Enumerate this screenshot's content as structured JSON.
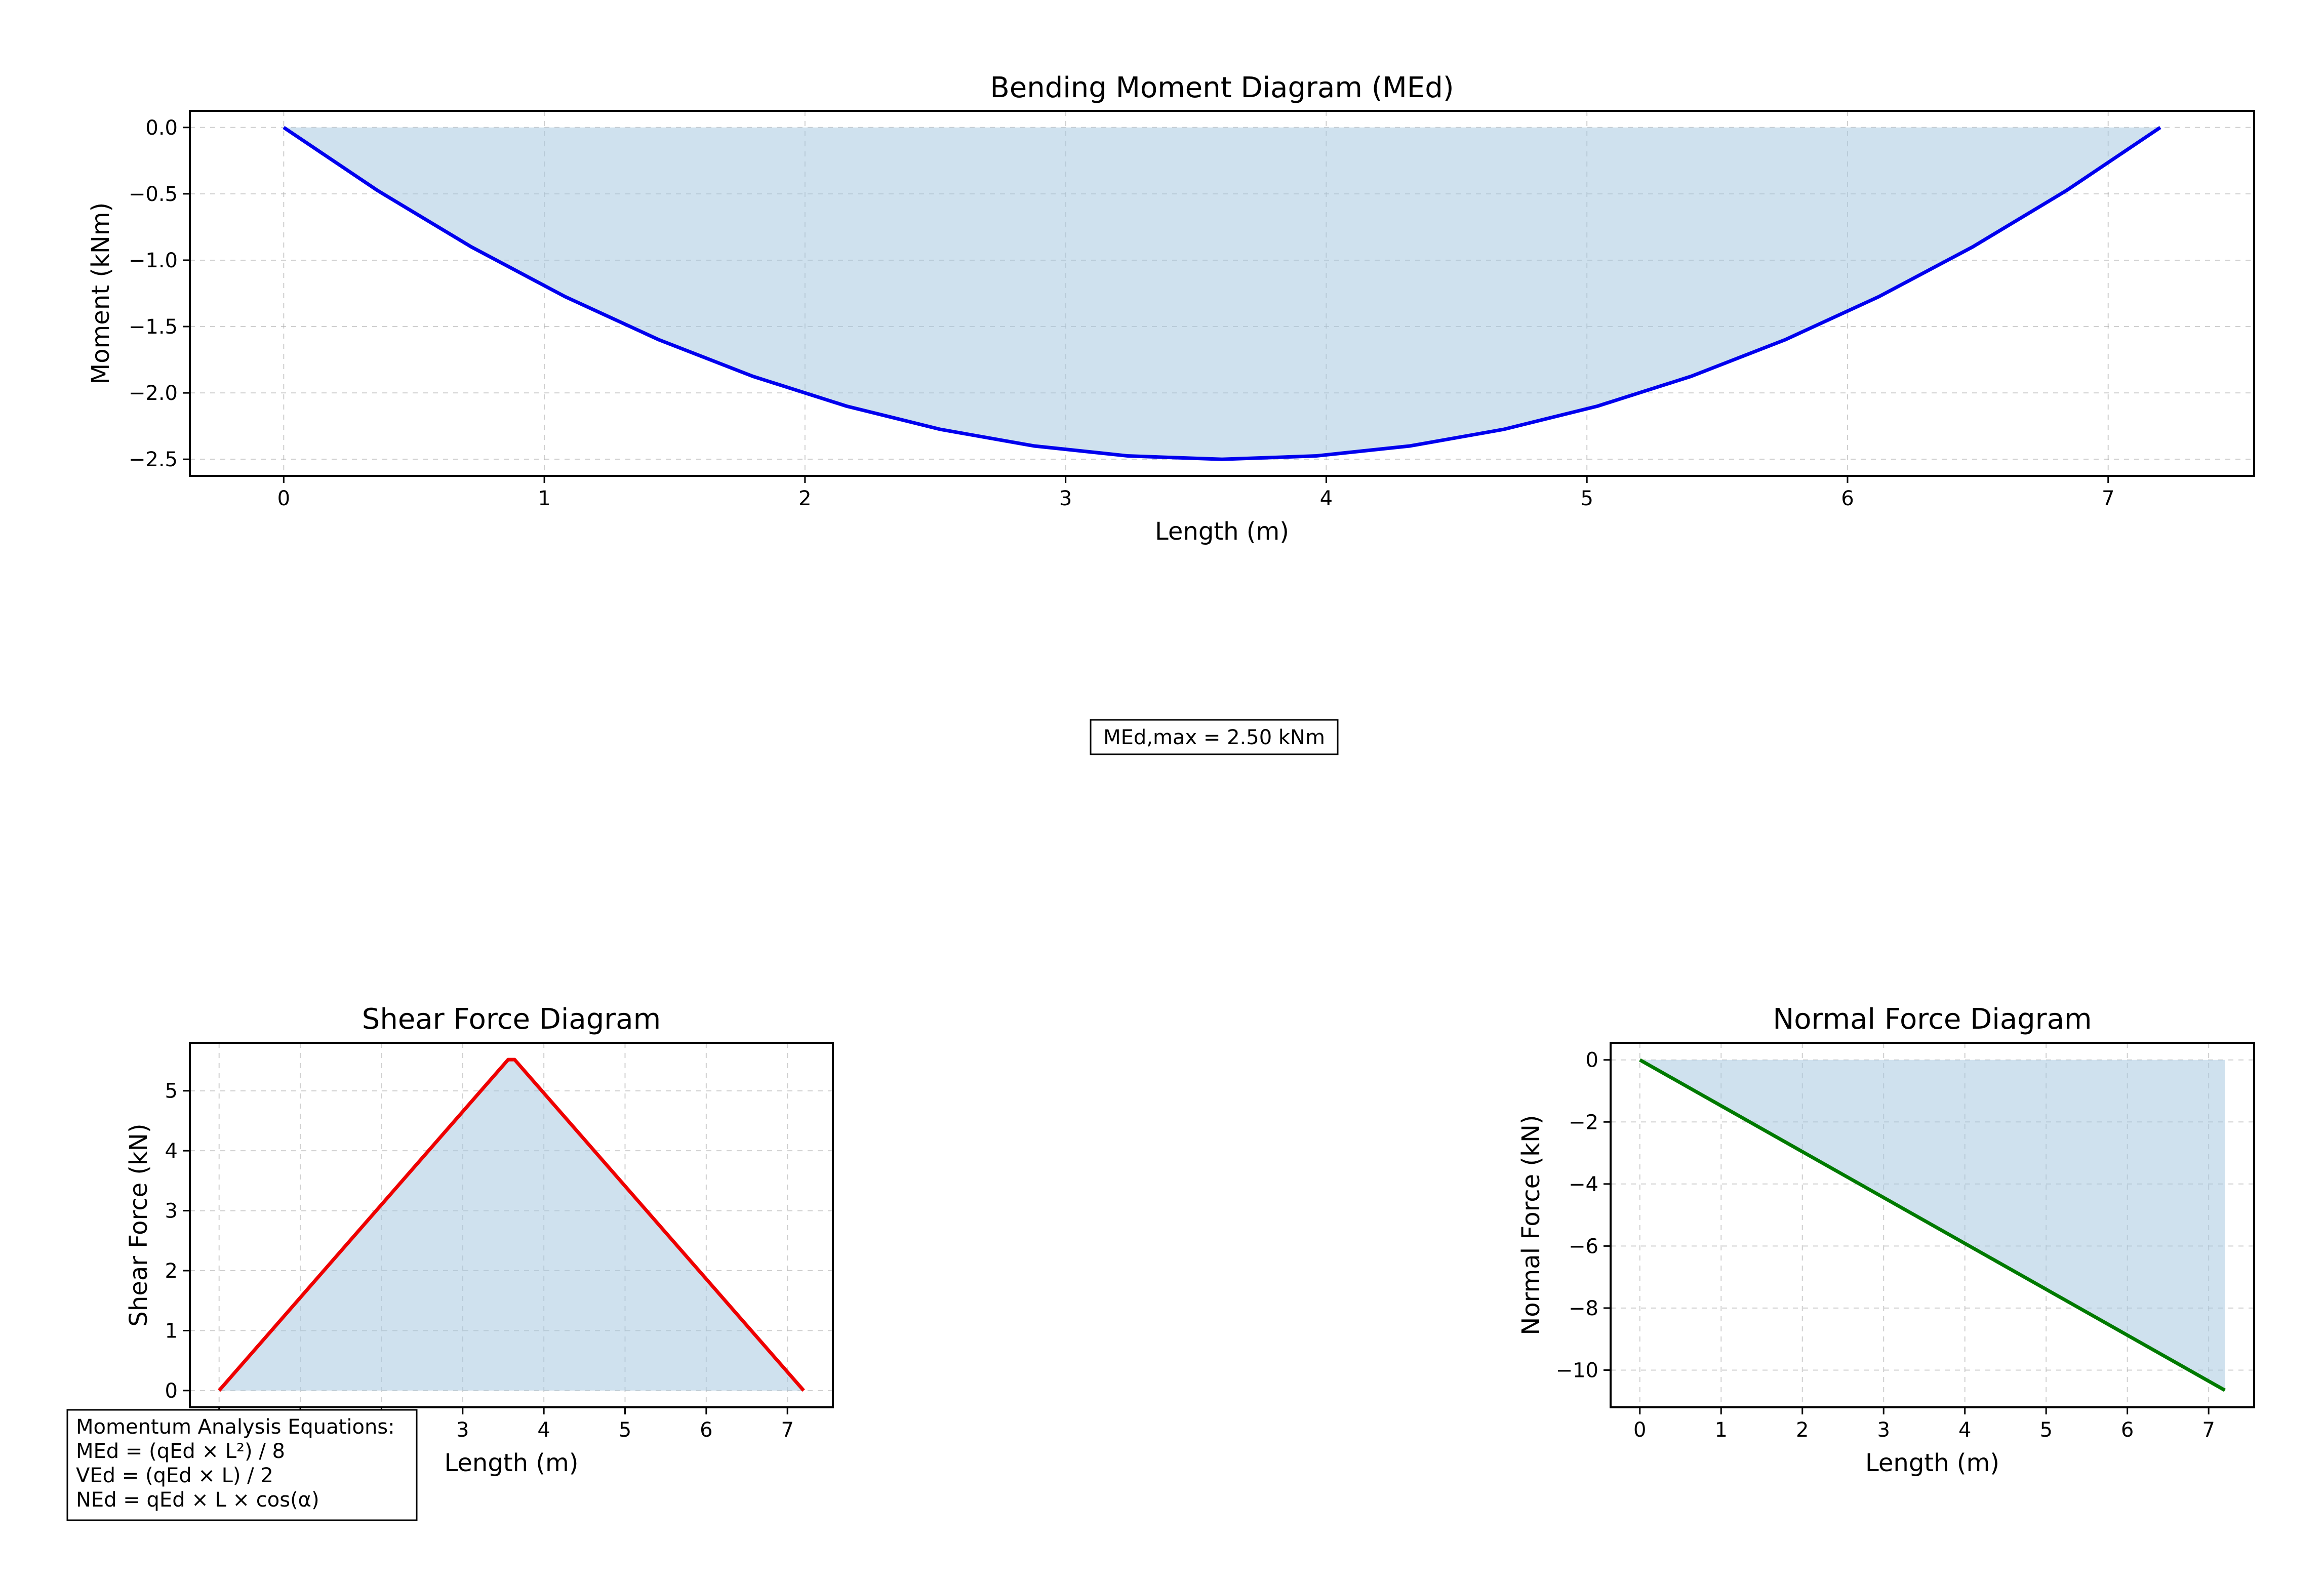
{
  "chart_data": [
    {
      "type": "area",
      "title": "Bending Moment Diagram (MEd)",
      "xlabel": "Length (m)",
      "ylabel": "Moment (kNm)",
      "xlim": [
        -0.36,
        7.56
      ],
      "ylim": [
        -2.625,
        0.125
      ],
      "xticks": [
        0,
        1,
        2,
        3,
        4,
        5,
        6,
        7
      ],
      "yticks": [
        0.0,
        -0.5,
        -1.0,
        -1.5,
        -2.0,
        -2.5
      ],
      "xtick_labels": [
        "0",
        "1",
        "2",
        "3",
        "4",
        "5",
        "6",
        "7"
      ],
      "ytick_labels": [
        "0.0",
        "−0.5",
        "−1.0",
        "−1.5",
        "−2.0",
        "−2.5"
      ],
      "grid": true,
      "series": [
        {
          "name": "MEd",
          "color": "#0000ee",
          "fill": "#a8c8e0",
          "x": [
            0,
            0.36,
            0.72,
            1.08,
            1.44,
            1.8,
            2.16,
            2.52,
            2.88,
            3.24,
            3.6,
            3.96,
            4.32,
            4.68,
            5.04,
            5.4,
            5.76,
            6.12,
            6.48,
            6.84,
            7.2
          ],
          "y": [
            0,
            -0.475,
            -0.9,
            -1.275,
            -1.6,
            -1.875,
            -2.1,
            -2.275,
            -2.4,
            -2.475,
            -2.5,
            -2.475,
            -2.4,
            -2.275,
            -2.1,
            -1.875,
            -1.6,
            -1.275,
            -0.9,
            -0.475,
            0
          ]
        }
      ]
    },
    {
      "type": "area",
      "title": "Shear Force Diagram",
      "xlabel": "Length (m)",
      "ylabel": "Shear Force (kN)",
      "xlim": [
        -0.36,
        7.56
      ],
      "ylim": [
        -0.28,
        5.8
      ],
      "xticks": [
        0,
        1,
        2,
        3,
        4,
        5,
        6,
        7
      ],
      "yticks": [
        0,
        1,
        2,
        3,
        4,
        5
      ],
      "xtick_labels": [
        "0",
        "1",
        "2",
        "3",
        "4",
        "5",
        "6",
        "7"
      ],
      "ytick_labels": [
        "0",
        "1",
        "2",
        "3",
        "4",
        "5"
      ],
      "grid": true,
      "series": [
        {
          "name": "VEd",
          "color": "#ee0000",
          "fill": "#a8c8e0",
          "x": [
            0,
            3.56,
            3.64,
            7.2
          ],
          "y": [
            0,
            5.52,
            5.52,
            0
          ]
        }
      ]
    },
    {
      "type": "area",
      "title": "Normal Force Diagram",
      "xlabel": "Length (m)",
      "ylabel": "Normal Force (kN)",
      "xlim": [
        -0.36,
        7.56
      ],
      "ylim": [
        -11.2,
        0.55
      ],
      "xticks": [
        0,
        1,
        2,
        3,
        4,
        5,
        6,
        7
      ],
      "yticks": [
        0,
        -2,
        -4,
        -6,
        -8,
        -10
      ],
      "xtick_labels": [
        "0",
        "1",
        "2",
        "3",
        "4",
        "5",
        "6",
        "7"
      ],
      "ytick_labels": [
        "0",
        "−2",
        "−4",
        "−6",
        "−8",
        "−10"
      ],
      "grid": true,
      "series": [
        {
          "name": "NEd",
          "color": "#007a00",
          "fill": "#a8c8e0",
          "x": [
            0,
            7.2
          ],
          "y": [
            0,
            -10.65
          ]
        }
      ]
    }
  ],
  "annotations": {
    "max_moment": "MEd,max = 2.50 kNm",
    "equations_title": "Momentum Analysis Equations:",
    "equations": [
      "MEd = (qEd × L²) / 8",
      "VEd = (qEd × L) / 2",
      "NEd = qEd × L × cos(α)"
    ]
  }
}
